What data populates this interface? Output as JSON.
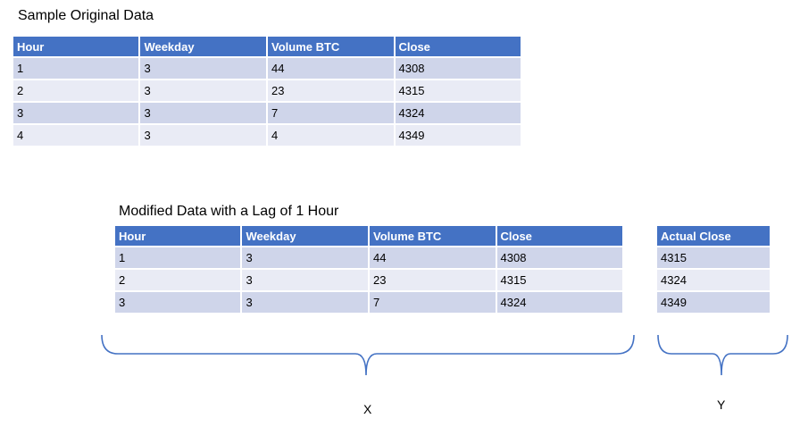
{
  "original": {
    "title": "Sample Original Data",
    "headers": [
      "Hour",
      "Weekday",
      "Volume BTC",
      "Close"
    ],
    "rows": [
      [
        "1",
        "3",
        "44",
        "4308"
      ],
      [
        "2",
        "3",
        "23",
        "4315"
      ],
      [
        "3",
        "3",
        "7",
        "4324"
      ],
      [
        "4",
        "3",
        "4",
        "4349"
      ]
    ]
  },
  "modified": {
    "title": "Modified Data with a Lag of 1 Hour",
    "headers": [
      "Hour",
      "Weekday",
      "Volume BTC",
      "Close"
    ],
    "rows": [
      [
        "1",
        "3",
        "44",
        "4308"
      ],
      [
        "2",
        "3",
        "23",
        "4315"
      ],
      [
        "3",
        "3",
        "7",
        "4324"
      ]
    ]
  },
  "actual": {
    "header": "Actual Close",
    "rows": [
      "4315",
      "4324",
      "4349"
    ]
  },
  "labels": {
    "x": "X",
    "y": "Y"
  },
  "colors": {
    "header": "#4472C4",
    "row_odd": "#CFD5EA",
    "row_even": "#E9EBF5",
    "brace": "#4472C4"
  }
}
